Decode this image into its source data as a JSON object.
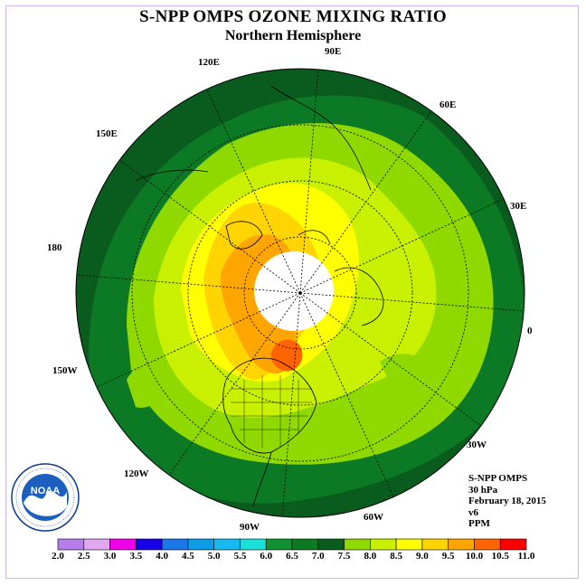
{
  "title": "S-NPP OMPS OZONE MIXING RATIO",
  "subtitle": "Northern Hemisphere",
  "longitude_labels": [
    {
      "text": "90E",
      "pos": "top"
    },
    {
      "text": "120E",
      "pos": "upper-left"
    },
    {
      "text": "60E",
      "pos": "upper-right"
    },
    {
      "text": "150E",
      "pos": "left-upper"
    },
    {
      "text": "30E",
      "pos": "right-upper"
    },
    {
      "text": "180",
      "pos": "left"
    },
    {
      "text": "0",
      "pos": "right"
    },
    {
      "text": "150W",
      "pos": "left-lower"
    },
    {
      "text": "30W",
      "pos": "right-lower"
    },
    {
      "text": "120W",
      "pos": "lower-left"
    },
    {
      "text": "60W",
      "pos": "lower-right"
    },
    {
      "text": "90W",
      "pos": "bottom"
    }
  ],
  "info": {
    "instrument": "S-NPP OMPS",
    "level": "30 hPa",
    "date": "February 18, 2015",
    "version": "v6",
    "units": "PPM"
  },
  "logo": {
    "text": "NOAA"
  },
  "colorbar": {
    "ticks": [
      "2.0",
      "2.5",
      "3.0",
      "3.5",
      "4.0",
      "4.5",
      "5.0",
      "5.5",
      "6.0",
      "6.5",
      "7.0",
      "7.5",
      "8.0",
      "8.5",
      "9.0",
      "9.5",
      "10.0",
      "10.5",
      "11.0"
    ],
    "colors": [
      "#b57ee8",
      "#e0a8ee",
      "#f000e8",
      "#1800e8",
      "#1c78e8",
      "#0c9ce8",
      "#18b8f0",
      "#1ce0d8",
      "#109030",
      "#0c7a24",
      "#0a5c1e",
      "#8fd800",
      "#c8f000",
      "#ffff00",
      "#ffd400",
      "#ffa500",
      "#ff6400",
      "#ff0000",
      "#8b5a3a"
    ]
  }
}
